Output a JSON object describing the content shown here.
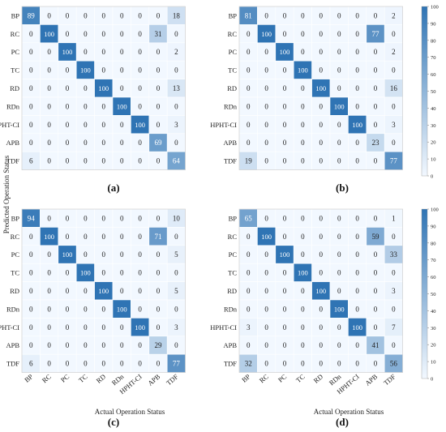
{
  "figure": {
    "ylabel": "Predicted Operation Status",
    "xlabel": "Actual Operation Status",
    "panel_labels": [
      "(a)",
      "(b)",
      "(c)",
      "(d)"
    ],
    "colorbar_ticks": [
      0,
      10,
      20,
      30,
      40,
      50,
      60,
      70,
      80,
      90,
      100
    ],
    "colors": {
      "low": "#f2f8ff",
      "high": "#2f74b4",
      "text": "#222222",
      "grid": "#ffffff"
    }
  },
  "chart_data": [
    {
      "type": "heatmap",
      "label": "(a)",
      "rows": [
        "BP",
        "RC",
        "PC",
        "TC",
        "RD",
        "RDn",
        "HPHT-CI",
        "APB",
        "TDF"
      ],
      "cols": [
        "BP",
        "RC",
        "PC",
        "TC",
        "RD",
        "RDn",
        "HPHT-CI",
        "APB",
        "TDF"
      ],
      "values": [
        [
          89,
          0,
          0,
          0,
          0,
          0,
          0,
          0,
          18
        ],
        [
          0,
          100,
          0,
          0,
          0,
          0,
          0,
          31,
          0
        ],
        [
          0,
          0,
          100,
          0,
          0,
          0,
          0,
          0,
          2
        ],
        [
          0,
          0,
          0,
          100,
          0,
          0,
          0,
          0,
          0
        ],
        [
          0,
          0,
          0,
          0,
          100,
          0,
          0,
          0,
          13
        ],
        [
          0,
          0,
          0,
          0,
          0,
          100,
          0,
          0,
          0
        ],
        [
          0,
          0,
          0,
          0,
          0,
          0,
          100,
          0,
          3
        ],
        [
          0,
          0,
          0,
          0,
          0,
          0,
          0,
          69,
          0
        ],
        [
          6,
          0,
          0,
          0,
          0,
          0,
          0,
          0,
          64
        ]
      ],
      "zlim": [
        0,
        100
      ]
    },
    {
      "type": "heatmap",
      "label": "(b)",
      "rows": [
        "BP",
        "RC",
        "PC",
        "TC",
        "RD",
        "RDn",
        "HPHT-CI",
        "APB",
        "TDF"
      ],
      "cols": [
        "BP",
        "RC",
        "PC",
        "TC",
        "RD",
        "RDn",
        "HPHT-CI",
        "APB",
        "TDF"
      ],
      "values": [
        [
          81,
          0,
          0,
          0,
          0,
          0,
          0,
          0,
          2
        ],
        [
          0,
          100,
          0,
          0,
          0,
          0,
          0,
          77,
          0
        ],
        [
          0,
          0,
          100,
          0,
          0,
          0,
          0,
          0,
          2
        ],
        [
          0,
          0,
          0,
          100,
          0,
          0,
          0,
          0,
          0
        ],
        [
          0,
          0,
          0,
          0,
          100,
          0,
          0,
          0,
          16
        ],
        [
          0,
          0,
          0,
          0,
          0,
          100,
          0,
          0,
          0
        ],
        [
          0,
          0,
          0,
          0,
          0,
          0,
          100,
          0,
          3
        ],
        [
          0,
          0,
          0,
          0,
          0,
          0,
          0,
          23,
          0
        ],
        [
          19,
          0,
          0,
          0,
          0,
          0,
          0,
          0,
          77
        ]
      ],
      "zlim": [
        0,
        100
      ]
    },
    {
      "type": "heatmap",
      "label": "(c)",
      "rows": [
        "BP",
        "RC",
        "PC",
        "TC",
        "RD",
        "RDn",
        "HPHT-CI",
        "APB",
        "TDF"
      ],
      "cols": [
        "BP",
        "RC",
        "PC",
        "TC",
        "RD",
        "RDn",
        "HPHT-CI",
        "APB",
        "TDF"
      ],
      "values": [
        [
          94,
          0,
          0,
          0,
          0,
          0,
          0,
          0,
          10
        ],
        [
          0,
          100,
          0,
          0,
          0,
          0,
          0,
          71,
          0
        ],
        [
          0,
          0,
          100,
          0,
          0,
          0,
          0,
          0,
          5
        ],
        [
          0,
          0,
          0,
          100,
          0,
          0,
          0,
          0,
          0
        ],
        [
          0,
          0,
          0,
          0,
          100,
          0,
          0,
          0,
          5
        ],
        [
          0,
          0,
          0,
          0,
          0,
          100,
          0,
          0,
          0
        ],
        [
          0,
          0,
          0,
          0,
          0,
          0,
          100,
          0,
          3
        ],
        [
          0,
          0,
          0,
          0,
          0,
          0,
          0,
          29,
          0
        ],
        [
          6,
          0,
          0,
          0,
          0,
          0,
          0,
          0,
          77
        ]
      ],
      "zlim": [
        0,
        100
      ]
    },
    {
      "type": "heatmap",
      "label": "(d)",
      "rows": [
        "BP",
        "RC",
        "PC",
        "TC",
        "RD",
        "RDn",
        "HPHT-CI",
        "APB",
        "TDF"
      ],
      "cols": [
        "BP",
        "RC",
        "PC",
        "TC",
        "RD",
        "RDn",
        "HPHT-CI",
        "APB",
        "TDF"
      ],
      "values": [
        [
          65,
          0,
          0,
          0,
          0,
          0,
          0,
          0,
          1
        ],
        [
          0,
          100,
          0,
          0,
          0,
          0,
          0,
          59,
          0
        ],
        [
          0,
          0,
          100,
          0,
          0,
          0,
          0,
          0,
          33
        ],
        [
          0,
          0,
          0,
          100,
          0,
          0,
          0,
          0,
          0
        ],
        [
          0,
          0,
          0,
          0,
          100,
          0,
          0,
          0,
          3
        ],
        [
          0,
          0,
          0,
          0,
          0,
          100,
          0,
          0,
          0
        ],
        [
          3,
          0,
          0,
          0,
          0,
          0,
          100,
          0,
          7
        ],
        [
          0,
          0,
          0,
          0,
          0,
          0,
          0,
          41,
          0
        ],
        [
          32,
          0,
          0,
          0,
          0,
          0,
          0,
          0,
          56
        ]
      ],
      "zlim": [
        0,
        100
      ]
    }
  ]
}
